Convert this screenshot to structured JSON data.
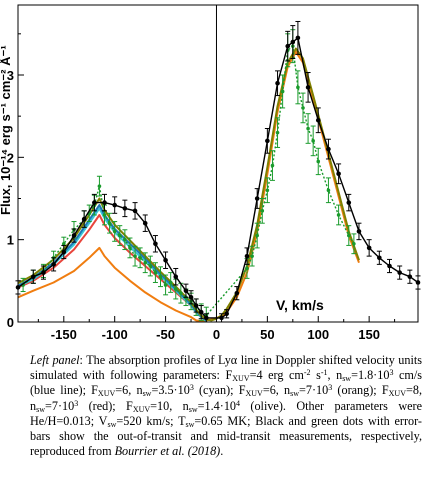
{
  "chart_data": {
    "type": "line",
    "ylabel": "Flux, 10⁻¹⁴ erg s⁻¹ cm⁻² Å⁻¹",
    "xlabel": "V, km/s",
    "xlim": [
      -195,
      198
    ],
    "ylim": [
      0,
      3.85
    ],
    "x_ticks": [
      -150,
      -100,
      -50,
      0,
      50,
      100,
      150
    ],
    "y_ticks": [
      0,
      1,
      2,
      3
    ],
    "x_tick_labels": [
      "-150",
      "-100",
      "-50",
      "0",
      "50",
      "100",
      "150"
    ],
    "y_tick_labels": [
      "0",
      "1",
      "2",
      "3"
    ],
    "vline_x": 0,
    "grid": false,
    "series": [
      {
        "color": "#f07d10",
        "style": "line",
        "x": [
          -195,
          -180,
          -160,
          -140,
          -125,
          -115,
          -110,
          -100,
          -85,
          -70,
          -55,
          -40,
          -25,
          -20,
          -15,
          -12,
          -10,
          -5,
          0,
          5,
          10,
          20,
          30,
          40,
          50,
          60,
          70,
          78,
          85,
          95,
          110,
          130,
          140
        ],
        "y": [
          0.3,
          0.38,
          0.48,
          0.62,
          0.78,
          0.9,
          0.8,
          0.66,
          0.5,
          0.36,
          0.24,
          0.14,
          0.06,
          0.02,
          0.01,
          0.01,
          0.02,
          0.03,
          0.05,
          0.07,
          0.12,
          0.3,
          0.6,
          1.1,
          1.8,
          2.55,
          3.1,
          3.28,
          3.15,
          2.7,
          2.0,
          1.05,
          0.72
        ]
      },
      {
        "color": "#e8453c",
        "style": "line",
        "x": [
          -195,
          -180,
          -160,
          -140,
          -125,
          -115,
          -110,
          -100,
          -85,
          -70,
          -55,
          -40,
          -25,
          -20,
          -15,
          -12,
          -10
        ],
        "y": [
          0.42,
          0.5,
          0.66,
          0.88,
          1.12,
          1.3,
          1.18,
          1.02,
          0.84,
          0.68,
          0.52,
          0.36,
          0.2,
          0.12,
          0.06,
          0.03,
          0.01
        ]
      },
      {
        "color": "#39c6d4",
        "style": "line",
        "x": [
          -195,
          -180,
          -160,
          -140,
          -125,
          -115,
          -110,
          -100,
          -85,
          -70,
          -55,
          -40,
          -25,
          -20,
          -15,
          -12,
          -10
        ],
        "y": [
          0.43,
          0.52,
          0.7,
          0.94,
          1.2,
          1.38,
          1.26,
          1.09,
          0.91,
          0.74,
          0.56,
          0.38,
          0.2,
          0.12,
          0.06,
          0.03,
          0.01
        ]
      },
      {
        "color": "#1f77b4",
        "style": "line",
        "x": [
          -195,
          -180,
          -160,
          -140,
          -125,
          -115,
          -110,
          -100,
          -85,
          -70,
          -55,
          -40,
          -25,
          -20,
          -15,
          -12,
          -10
        ],
        "y": [
          0.44,
          0.54,
          0.72,
          0.97,
          1.24,
          1.42,
          1.3,
          1.13,
          0.95,
          0.77,
          0.58,
          0.4,
          0.22,
          0.13,
          0.07,
          0.04,
          0.02
        ]
      },
      {
        "color": "#808000",
        "style": "line",
        "x": [
          -195,
          -180,
          -160,
          -140,
          -125,
          -115,
          -110,
          -100,
          -85,
          -70,
          -55,
          -40,
          -25,
          -20,
          -15,
          -12,
          -10,
          -5,
          0,
          5,
          10,
          20,
          30,
          40,
          50,
          60,
          70,
          78,
          85,
          95,
          110,
          130,
          140
        ],
        "y": [
          0.47,
          0.57,
          0.76,
          1.02,
          1.3,
          1.5,
          1.36,
          1.18,
          0.99,
          0.8,
          0.61,
          0.43,
          0.24,
          0.15,
          0.08,
          0.05,
          0.03,
          0.02,
          0.04,
          0.08,
          0.16,
          0.36,
          0.68,
          1.18,
          1.88,
          2.62,
          3.15,
          3.32,
          3.2,
          2.75,
          2.05,
          1.1,
          0.75
        ]
      },
      {
        "color": "#1a9b2c",
        "style": "dotted",
        "x": [
          -190,
          -180,
          -170,
          -160,
          -150,
          -140,
          -130,
          -125,
          -120,
          -115,
          -110,
          -105,
          -100,
          -95,
          -90,
          -85,
          -80,
          -75,
          -70,
          -65,
          -60,
          -55,
          -50,
          -45,
          -40,
          -35,
          -30,
          -25,
          -20,
          -15,
          -10,
          30,
          35,
          40,
          45,
          50,
          55,
          60,
          65,
          70,
          75,
          80,
          85,
          90,
          95,
          100,
          110,
          120,
          130,
          135
        ],
        "y": [
          0.45,
          0.55,
          0.62,
          0.78,
          0.95,
          1.12,
          1.25,
          1.32,
          1.42,
          1.65,
          1.3,
          1.2,
          1.1,
          1.05,
          1.0,
          0.9,
          0.8,
          0.78,
          0.72,
          0.68,
          0.6,
          0.55,
          0.45,
          0.48,
          0.4,
          0.35,
          0.3,
          0.25,
          0.18,
          0.12,
          0.08,
          0.65,
          0.8,
          1.05,
          1.35,
          1.6,
          1.9,
          2.3,
          2.8,
          3.3,
          3.35,
          2.85,
          2.6,
          2.35,
          2.2,
          1.95,
          1.6,
          1.3,
          1.05,
          0.95
        ],
        "yerr": [
          0.08,
          0.08,
          0.08,
          0.08,
          0.08,
          0.1,
          0.1,
          0.1,
          0.12,
          0.12,
          0.12,
          0.12,
          0.12,
          0.12,
          0.12,
          0.12,
          0.12,
          0.12,
          0.12,
          0.12,
          0.12,
          0.12,
          0.12,
          0.12,
          0.12,
          0.12,
          0.1,
          0.1,
          0.1,
          0.1,
          0.1,
          0.12,
          0.12,
          0.15,
          0.15,
          0.15,
          0.18,
          0.18,
          0.2,
          0.2,
          0.2,
          0.2,
          0.18,
          0.18,
          0.18,
          0.16,
          0.15,
          0.12,
          0.12,
          0.12
        ]
      },
      {
        "color": "#000000",
        "style": "line-markers",
        "x": [
          -195,
          -180,
          -170,
          -160,
          -150,
          -140,
          -130,
          -120,
          -110,
          -100,
          -90,
          -80,
          -70,
          -60,
          -50,
          -40,
          -30,
          -25,
          -20,
          -15,
          -10,
          5,
          10,
          20,
          30,
          40,
          50,
          60,
          70,
          75,
          80,
          90,
          100,
          110,
          120,
          130,
          140,
          150,
          160,
          170,
          180,
          190,
          198
        ],
        "y": [
          0.42,
          0.55,
          0.6,
          0.7,
          0.85,
          1.05,
          1.25,
          1.45,
          1.45,
          1.42,
          1.38,
          1.35,
          1.2,
          0.95,
          0.75,
          0.55,
          0.38,
          0.3,
          0.2,
          0.12,
          0.05,
          0.05,
          0.1,
          0.35,
          0.8,
          1.5,
          2.2,
          2.9,
          3.35,
          3.4,
          3.45,
          2.85,
          2.45,
          2.1,
          1.8,
          1.45,
          1.1,
          0.9,
          0.78,
          0.68,
          0.6,
          0.55,
          0.48
        ],
        "yerr": [
          0.08,
          0.08,
          0.08,
          0.08,
          0.08,
          0.08,
          0.1,
          0.1,
          0.1,
          0.1,
          0.1,
          0.1,
          0.1,
          0.1,
          0.1,
          0.1,
          0.08,
          0.08,
          0.08,
          0.08,
          0.05,
          0.05,
          0.05,
          0.08,
          0.1,
          0.12,
          0.15,
          0.15,
          0.18,
          0.2,
          0.2,
          0.18,
          0.15,
          0.12,
          0.12,
          0.1,
          0.1,
          0.1,
          0.08,
          0.08,
          0.08,
          0.08,
          0.08
        ]
      }
    ]
  },
  "caption": {
    "left_panel": "Left panel",
    "p1": ": The absorption profiles of Lyα line in Doppler shifted velocity units simulated with following parameters: F",
    "xuv": "XUV",
    "p2": "=4 erg cm",
    "sup_m2": "-2",
    "p3": " s",
    "sup_m1": "-1",
    "p4": ", n",
    "sw": "sw",
    "p5": "=1.8·10",
    "sup_3": "3",
    "p6": " cm/s (blue line); F",
    "p7": "=6, n",
    "p8": "=3.5·10",
    "p9": " (cyan); F",
    "p10": "=6, n",
    "p11": "=7·10",
    "p12": " (orang); F",
    "p13": "=8, n",
    "p14": "=7·10",
    "p15": " (red); F",
    "p16": "=10, n",
    "p17": "=1.4·10",
    "sup_4": "4",
    "p18": " (olive). Other parameters were He/H=0.013; V",
    "p19": "=520 km/s; T",
    "p20": "=0.65 MK; Black and green dots with error-bars show the out-of-transit and mid-transit measurements, respectively, reproduced from ",
    "ref": "Bourrier et al. (2018)",
    "p21": "."
  }
}
